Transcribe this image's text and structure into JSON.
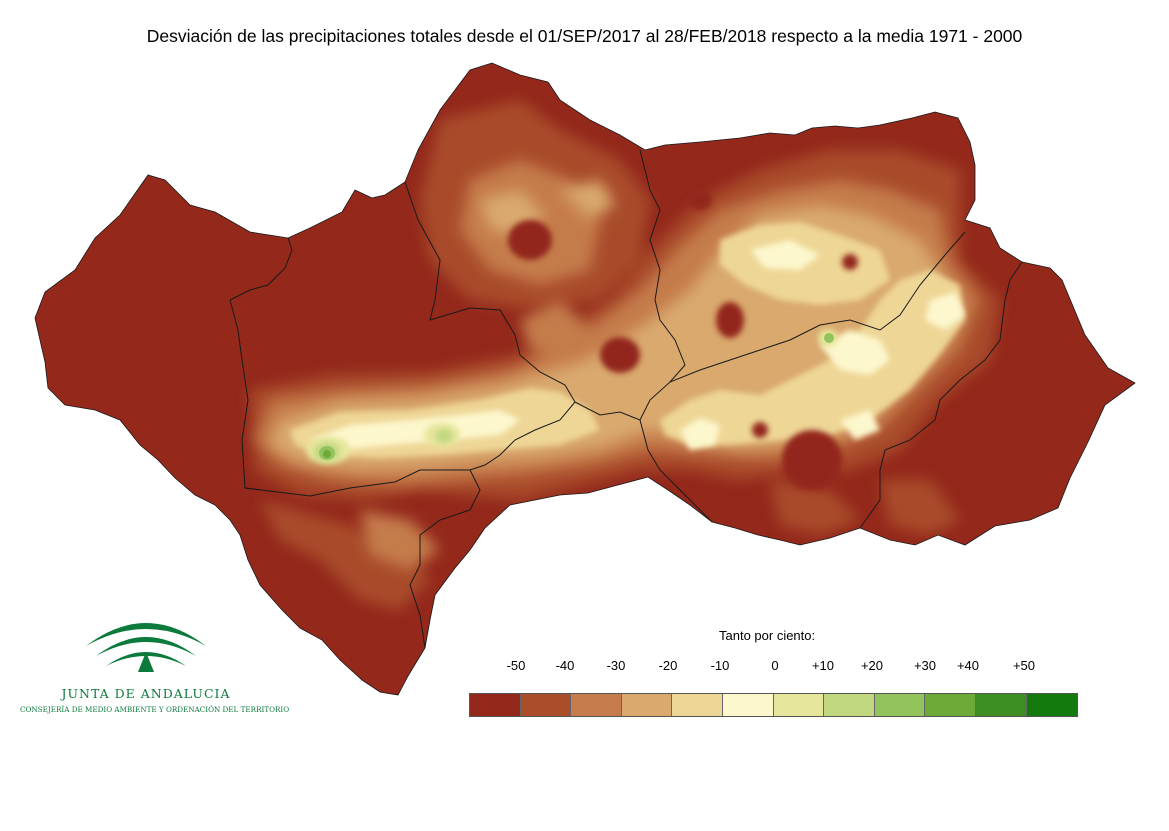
{
  "title": "Desviación de las precipitaciones totales desde el 01/SEP/2017 al 28/FEB/2018 respecto a la media 1971 - 2000",
  "logo": {
    "name": "JUNTA DE ANDALUCIA",
    "subtitle": "CONSEJERÍA DE MEDIO AMBIENTE Y ORDENACIÓN DEL TERRITORIO",
    "color": "#0b7a3b"
  },
  "legend": {
    "title": "Tanto por ciento:",
    "ticks": [
      "-50",
      "-40",
      "-30",
      "-20",
      "-10",
      "0",
      "+10",
      "+20",
      "+30",
      "+40",
      "+50"
    ],
    "colors": [
      "#93281b",
      "#a94c2a",
      "#c57b4b",
      "#d9a96e",
      "#eed696",
      "#fdf7cd",
      "#e6e69c",
      "#c2d880",
      "#93c35d",
      "#6eaa38",
      "#3f8e23",
      "#157a0d"
    ]
  },
  "map": {
    "region": "Andalucía",
    "base_color": "#93281b"
  }
}
